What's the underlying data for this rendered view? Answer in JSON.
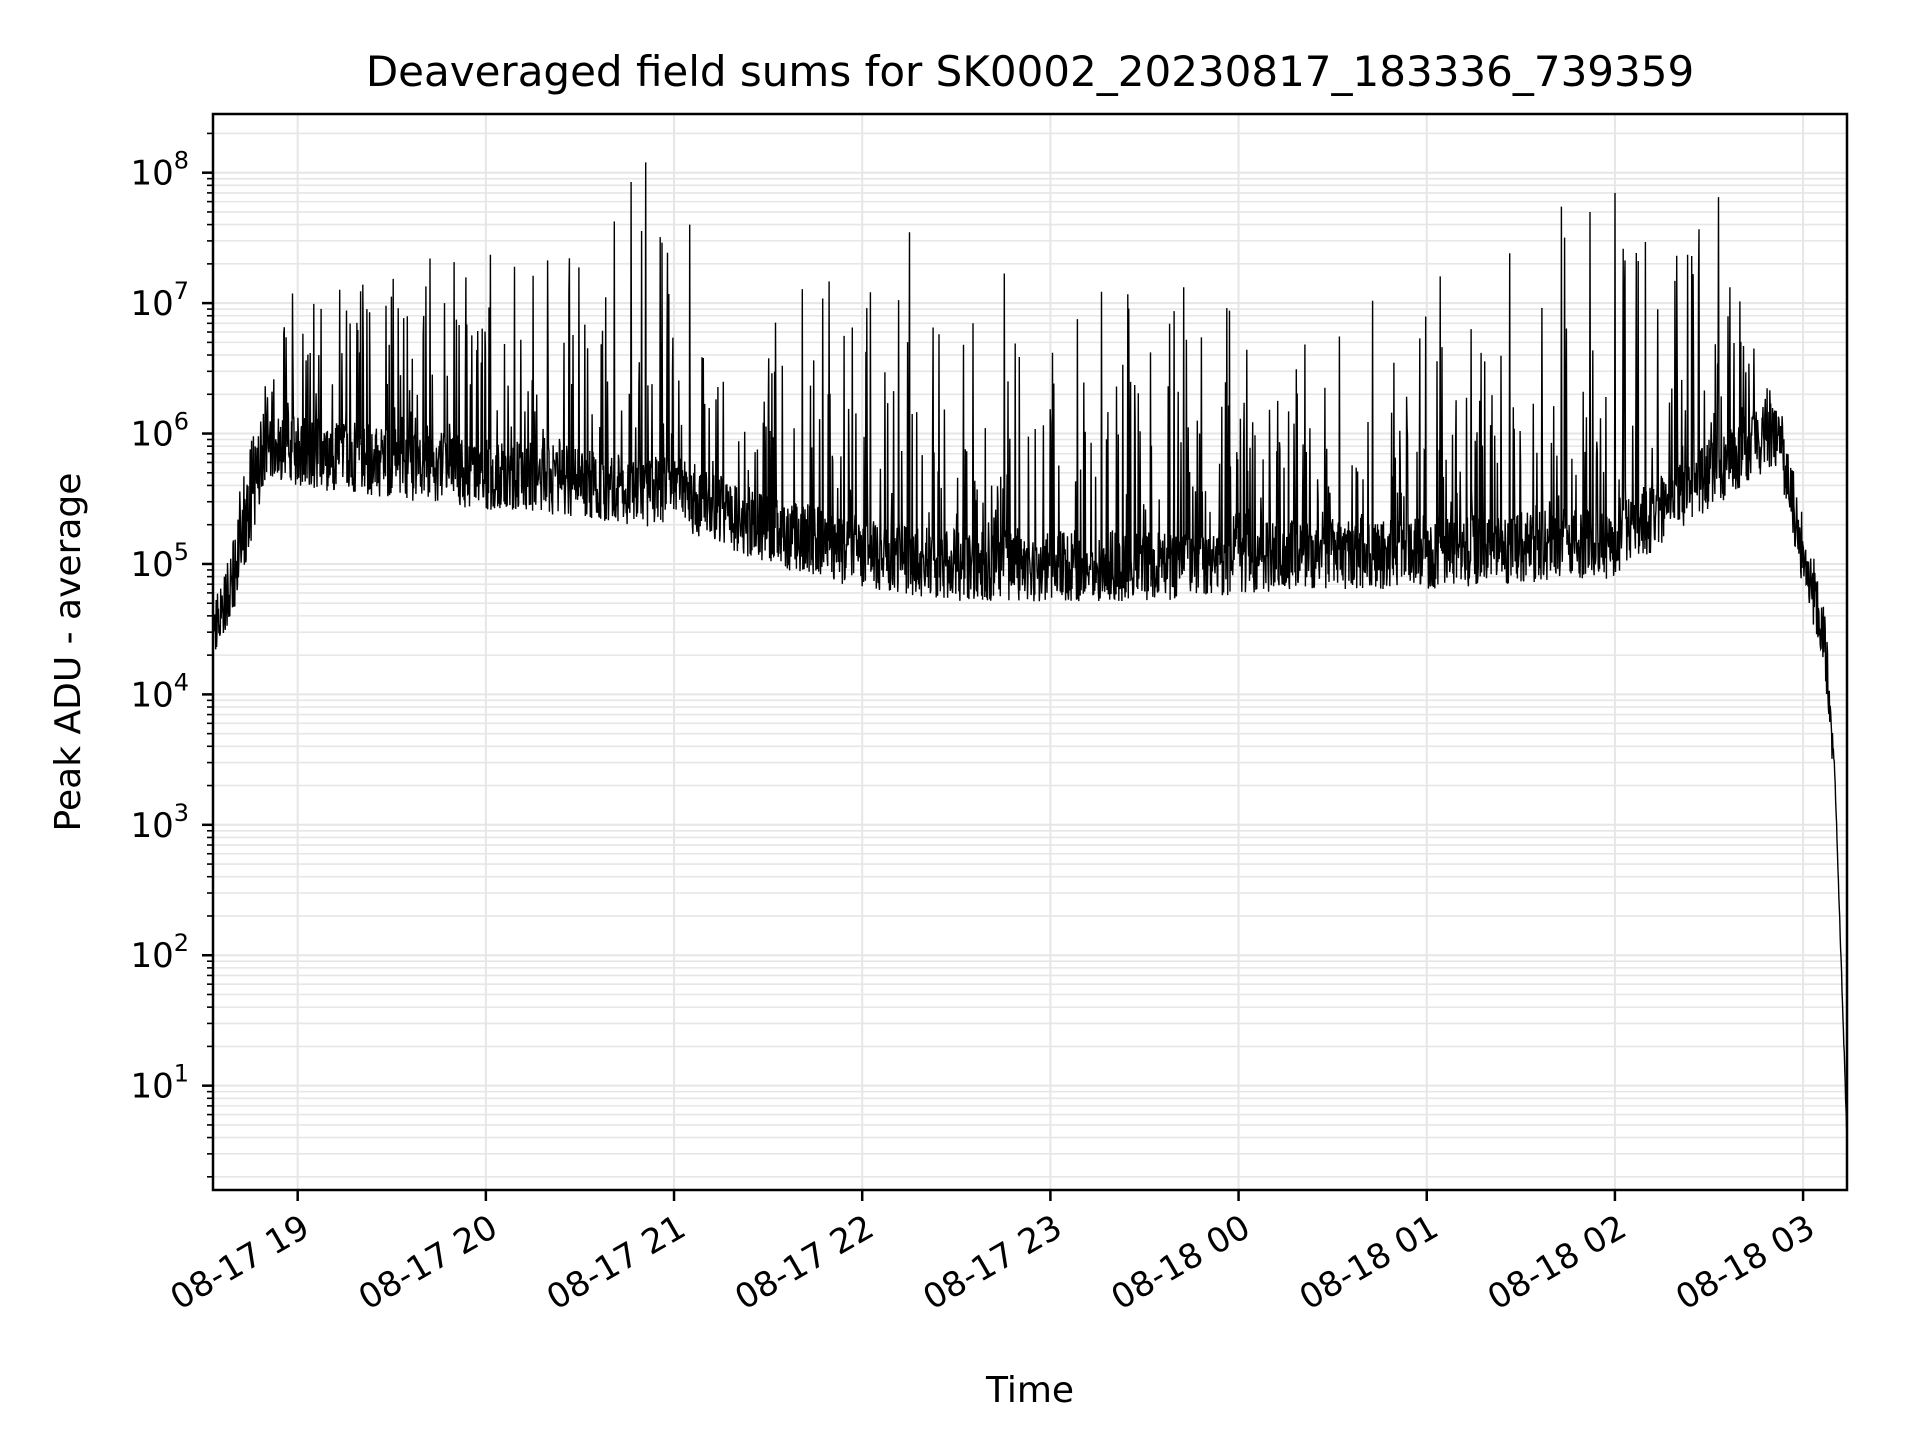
{
  "chart_data": {
    "type": "line",
    "title": "Deaveraged field sums for SK0002_20230817_183336_739359",
    "xlabel": "Time",
    "ylabel": "Peak ADU - average",
    "y_scale": "log",
    "ylim_decades": [
      0.2,
      8.45
    ],
    "x_range": [
      "2023-08-17 18:33",
      "2023-08-18 03:14"
    ],
    "grid": true,
    "grid_minor": true,
    "line_color": "#000000",
    "grid_color": "#e6e6e6",
    "x_ticks": [
      {
        "label": "08-17 19",
        "time": "2023-08-17 19:00"
      },
      {
        "label": "08-17 20",
        "time": "2023-08-17 20:00"
      },
      {
        "label": "08-17 21",
        "time": "2023-08-17 21:00"
      },
      {
        "label": "08-17 22",
        "time": "2023-08-17 22:00"
      },
      {
        "label": "08-17 23",
        "time": "2023-08-17 23:00"
      },
      {
        "label": "08-18 00",
        "time": "2023-08-18 00:00"
      },
      {
        "label": "08-18 01",
        "time": "2023-08-18 01:00"
      },
      {
        "label": "08-18 02",
        "time": "2023-08-18 02:00"
      },
      {
        "label": "08-18 03",
        "time": "2023-08-18 03:00"
      }
    ],
    "y_ticks": [
      {
        "base": "10",
        "exp": "1"
      },
      {
        "base": "10",
        "exp": "2"
      },
      {
        "base": "10",
        "exp": "3"
      },
      {
        "base": "10",
        "exp": "4"
      },
      {
        "base": "10",
        "exp": "5"
      },
      {
        "base": "10",
        "exp": "6"
      },
      {
        "base": "10",
        "exp": "7"
      },
      {
        "base": "10",
        "exp": "8"
      }
    ],
    "series": [
      {
        "envelope": [
          {
            "time": "2023-08-17 18:33",
            "baseline": 30000.0,
            "peak": 30000.0
          },
          {
            "time": "2023-08-17 18:40",
            "baseline": 70000.0,
            "peak": 300000.0
          },
          {
            "time": "2023-08-17 18:50",
            "baseline": 700000.0,
            "peak": 2500000.0
          },
          {
            "time": "2023-08-17 19:00",
            "baseline": 600000.0,
            "peak": 20000000.0
          },
          {
            "time": "2023-08-17 19:30",
            "baseline": 500000.0,
            "peak": 20000000.0
          },
          {
            "time": "2023-08-17 20:00",
            "baseline": 400000.0,
            "peak": 30000000.0
          },
          {
            "time": "2023-08-17 20:30",
            "baseline": 350000.0,
            "peak": 30000000.0
          },
          {
            "time": "2023-08-17 20:51",
            "baseline": 300000.0,
            "peak": 120000000.0
          },
          {
            "time": "2023-08-17 21:00",
            "baseline": 300000.0,
            "peak": 30000000.0
          },
          {
            "time": "2023-08-17 21:30",
            "baseline": 150000.0,
            "peak": 15000000.0
          },
          {
            "time": "2023-08-17 22:00",
            "baseline": 100000.0,
            "peak": 15000000.0
          },
          {
            "time": "2023-08-17 22:30",
            "baseline": 80000.0,
            "peak": 20000000.0
          },
          {
            "time": "2023-08-17 23:00",
            "baseline": 80000.0,
            "peak": 15000000.0
          },
          {
            "time": "2023-08-17 23:30",
            "baseline": 80000.0,
            "peak": 15000000.0
          },
          {
            "time": "2023-08-18 00:00",
            "baseline": 90000.0,
            "peak": 15000000.0
          },
          {
            "time": "2023-08-18 00:30",
            "baseline": 100000.0,
            "peak": 15000000.0
          },
          {
            "time": "2023-08-18 01:00",
            "baseline": 100000.0,
            "peak": 15000000.0
          },
          {
            "time": "2023-08-18 01:30",
            "baseline": 110000.0,
            "peak": 40000000.0
          },
          {
            "time": "2023-08-18 02:00",
            "baseline": 120000.0,
            "peak": 40000000.0
          },
          {
            "time": "2023-08-18 02:30",
            "baseline": 400000.0,
            "peak": 50000000.0
          },
          {
            "time": "2023-08-18 02:52",
            "baseline": 900000.0,
            "peak": 1500000.0
          },
          {
            "time": "2023-08-18 03:00",
            "baseline": 100000.0,
            "peak": 150000.0
          },
          {
            "time": "2023-08-18 03:06",
            "baseline": 30000.0,
            "peak": 80000.0
          },
          {
            "time": "2023-08-18 03:10",
            "baseline": 3000.0,
            "peak": 3000.0
          },
          {
            "time": "2023-08-18 03:14",
            "baseline": 4.0,
            "peak": 4.0
          }
        ],
        "notable_spikes": [
          {
            "time": "2023-08-17 20:51",
            "value": 120000000.0
          },
          {
            "time": "2023-08-18 02:00",
            "value": 70000000.0
          },
          {
            "time": "2023-08-18 02:33",
            "value": 65000000.0
          },
          {
            "time": "2023-08-18 01:43",
            "value": 55000000.0
          },
          {
            "time": "2023-08-18 01:52",
            "value": 50000000.0
          },
          {
            "time": "2023-08-17 21:05",
            "value": 40000000.0
          },
          {
            "time": "2023-08-17 22:15",
            "value": 35000000.0
          }
        ]
      }
    ]
  }
}
